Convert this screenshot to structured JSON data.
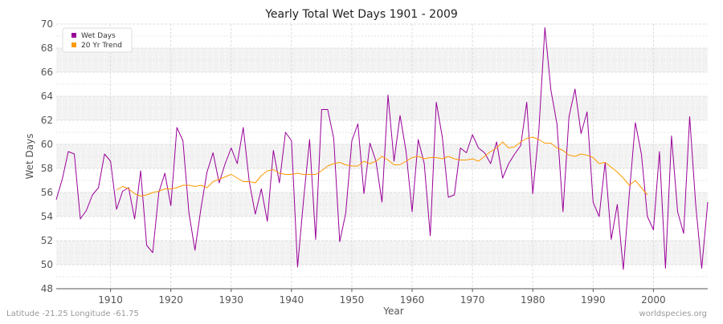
{
  "chart_data": {
    "type": "line",
    "title": "Yearly Total Wet Days 1901 - 2009",
    "xlabel": "Year",
    "ylabel": "Wet Days",
    "xlim": [
      1901,
      2009
    ],
    "ylim": [
      48,
      70
    ],
    "x_ticks": [
      1910,
      1920,
      1930,
      1940,
      1950,
      1960,
      1970,
      1980,
      1990,
      2000
    ],
    "y_ticks": [
      48,
      50,
      52,
      54,
      56,
      58,
      60,
      62,
      64,
      66,
      68,
      70
    ],
    "grid": true,
    "legend_position": "top-left",
    "series": [
      {
        "name": "Wet Days",
        "color": "#990099",
        "x": [
          1901,
          1902,
          1903,
          1904,
          1905,
          1906,
          1907,
          1908,
          1909,
          1910,
          1911,
          1912,
          1913,
          1914,
          1915,
          1916,
          1917,
          1918,
          1919,
          1920,
          1921,
          1922,
          1923,
          1924,
          1925,
          1926,
          1927,
          1928,
          1929,
          1930,
          1931,
          1932,
          1933,
          1934,
          1935,
          1936,
          1937,
          1938,
          1939,
          1940,
          1941,
          1942,
          1943,
          1944,
          1945,
          1946,
          1947,
          1948,
          1949,
          1950,
          1951,
          1952,
          1953,
          1954,
          1955,
          1956,
          1957,
          1958,
          1959,
          1960,
          1961,
          1962,
          1963,
          1964,
          1965,
          1966,
          1967,
          1968,
          1969,
          1970,
          1971,
          1972,
          1973,
          1974,
          1975,
          1976,
          1977,
          1978,
          1979,
          1980,
          1981,
          1982,
          1983,
          1984,
          1985,
          1986,
          1987,
          1988,
          1989,
          1990,
          1991,
          1992,
          1993,
          1994,
          1995,
          1996,
          1997,
          1998,
          1999,
          2000,
          2001,
          2002,
          2003,
          2004,
          2005,
          2006,
          2007,
          2008,
          2009
        ],
        "values": [
          55.4,
          57.1,
          59.4,
          59.2,
          53.8,
          54.5,
          55.8,
          56.4,
          59.2,
          58.6,
          54.6,
          56.1,
          56.4,
          53.8,
          57.8,
          51.6,
          51.0,
          56.0,
          57.6,
          54.9,
          61.4,
          60.3,
          54.3,
          51.2,
          54.7,
          57.7,
          59.3,
          56.8,
          58.4,
          59.7,
          58.4,
          61.4,
          56.9,
          54.2,
          56.3,
          53.6,
          59.5,
          56.8,
          61.0,
          60.3,
          49.8,
          55.4,
          60.4,
          52.1,
          62.9,
          62.9,
          60.5,
          51.9,
          54.3,
          60.3,
          61.7,
          55.9,
          60.1,
          58.6,
          55.2,
          64.1,
          58.6,
          62.4,
          59.4,
          54.4,
          60.4,
          58.4,
          52.4,
          63.5,
          60.6,
          55.6,
          55.8,
          59.7,
          59.3,
          60.8,
          59.7,
          59.3,
          58.4,
          60.2,
          57.2,
          58.4,
          59.2,
          59.9,
          63.5,
          55.9,
          61.1,
          69.7,
          64.5,
          61.7,
          54.4,
          62.3,
          64.6,
          60.9,
          62.7,
          55.2,
          54.0,
          58.5,
          52.1,
          55.0,
          49.6,
          55.9,
          61.8,
          59.2,
          54.0,
          52.9,
          59.4,
          49.7,
          60.7,
          54.4,
          52.6,
          62.3,
          55.0,
          49.7,
          55.2
        ]
      },
      {
        "name": "20 Yr Trend",
        "color": "#ff9900",
        "x": [
          1911,
          1912,
          1913,
          1914,
          1915,
          1916,
          1917,
          1918,
          1919,
          1920,
          1921,
          1922,
          1923,
          1924,
          1925,
          1926,
          1927,
          1928,
          1929,
          1930,
          1931,
          1932,
          1933,
          1934,
          1935,
          1936,
          1937,
          1938,
          1939,
          1940,
          1941,
          1942,
          1943,
          1944,
          1945,
          1946,
          1947,
          1948,
          1949,
          1950,
          1951,
          1952,
          1953,
          1954,
          1955,
          1956,
          1957,
          1958,
          1959,
          1960,
          1961,
          1962,
          1963,
          1964,
          1965,
          1966,
          1967,
          1968,
          1969,
          1970,
          1971,
          1972,
          1973,
          1974,
          1975,
          1976,
          1977,
          1978,
          1979,
          1980,
          1981,
          1982,
          1983,
          1984,
          1985,
          1986,
          1987,
          1988,
          1989,
          1990,
          1991,
          1992,
          1993,
          1994,
          1995,
          1996,
          1997,
          1998,
          1999
        ],
        "values": [
          56.2,
          56.5,
          56.3,
          55.9,
          55.7,
          55.8,
          56.0,
          56.1,
          56.3,
          56.3,
          56.4,
          56.6,
          56.6,
          56.5,
          56.6,
          56.4,
          56.9,
          57.1,
          57.3,
          57.5,
          57.2,
          56.9,
          56.9,
          56.8,
          57.4,
          57.8,
          57.9,
          57.6,
          57.5,
          57.5,
          57.6,
          57.5,
          57.5,
          57.5,
          57.8,
          58.2,
          58.4,
          58.5,
          58.3,
          58.2,
          58.2,
          58.6,
          58.4,
          58.6,
          59.0,
          58.7,
          58.3,
          58.3,
          58.6,
          58.9,
          59.0,
          58.8,
          58.9,
          58.9,
          58.8,
          59.0,
          58.8,
          58.7,
          58.7,
          58.8,
          58.6,
          59.0,
          59.4,
          59.7,
          60.2,
          59.7,
          59.8,
          60.2,
          60.5,
          60.6,
          60.4,
          60.1,
          60.1,
          59.7,
          59.5,
          59.1,
          59.0,
          59.2,
          59.1,
          58.9,
          58.4,
          58.5,
          58.1,
          57.7,
          57.2,
          56.6,
          57.0,
          56.4,
          55.8
        ]
      }
    ]
  },
  "footer": {
    "location": "Latitude -21.25 Longitude -61.75",
    "source": "worldspecies.org"
  }
}
